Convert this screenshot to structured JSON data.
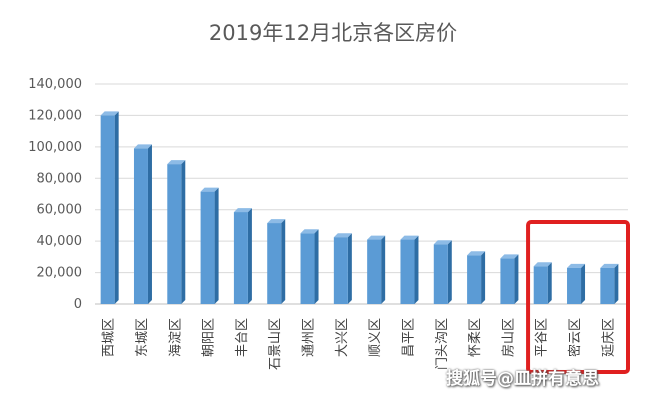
{
  "chart_data": {
    "type": "bar",
    "title": "2019年12月北京各区房价",
    "categories": [
      "西城区",
      "东城区",
      "海淀区",
      "朝阳区",
      "丰台区",
      "石景山区",
      "通州区",
      "大兴区",
      "顺义区",
      "昌平区",
      "门头沟区",
      "怀柔区",
      "房山区",
      "平谷区",
      "密云区",
      "延庆区"
    ],
    "values": [
      120000,
      99000,
      89000,
      71500,
      58500,
      51500,
      45000,
      42500,
      41000,
      41000,
      38000,
      31000,
      29000,
      24000,
      23000,
      23000
    ],
    "ylim": [
      0,
      140000
    ],
    "yticks": [
      "0",
      "20,000",
      "40,000",
      "60,000",
      "80,000",
      "100,000",
      "120,000",
      "140,000"
    ],
    "grid": true,
    "bar_color": "#5B9BD5",
    "highlight_color": "#E02020",
    "highlight_categories": [
      "平谷区",
      "密云区",
      "延庆区"
    ]
  },
  "watermark": "搜狐号@皿拼有意思"
}
